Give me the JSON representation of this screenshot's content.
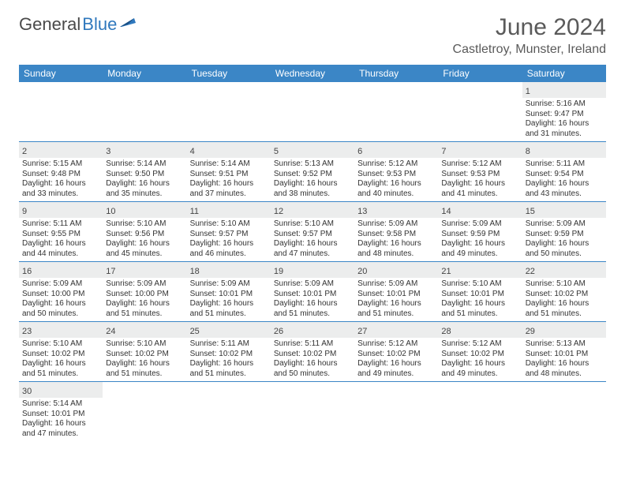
{
  "logo": {
    "text_dark": "General",
    "text_blue": "Blue"
  },
  "title": "June 2024",
  "location": "Castletroy, Munster, Ireland",
  "colors": {
    "header_bg": "#3b86c6",
    "header_text": "#ffffff",
    "daynum_bg": "#eceded",
    "rule": "#3b86c6",
    "logo_blue": "#2f78bd",
    "text": "#333333"
  },
  "weekdays": [
    "Sunday",
    "Monday",
    "Tuesday",
    "Wednesday",
    "Thursday",
    "Friday",
    "Saturday"
  ],
  "weeks": [
    {
      "days": [
        {
          "num": "",
          "sunrise": "",
          "sunset": "",
          "daylight": ""
        },
        {
          "num": "",
          "sunrise": "",
          "sunset": "",
          "daylight": ""
        },
        {
          "num": "",
          "sunrise": "",
          "sunset": "",
          "daylight": ""
        },
        {
          "num": "",
          "sunrise": "",
          "sunset": "",
          "daylight": ""
        },
        {
          "num": "",
          "sunrise": "",
          "sunset": "",
          "daylight": ""
        },
        {
          "num": "",
          "sunrise": "",
          "sunset": "",
          "daylight": ""
        },
        {
          "num": "1",
          "sunrise": "Sunrise: 5:16 AM",
          "sunset": "Sunset: 9:47 PM",
          "daylight": "Daylight: 16 hours and 31 minutes."
        }
      ]
    },
    {
      "days": [
        {
          "num": "2",
          "sunrise": "Sunrise: 5:15 AM",
          "sunset": "Sunset: 9:48 PM",
          "daylight": "Daylight: 16 hours and 33 minutes."
        },
        {
          "num": "3",
          "sunrise": "Sunrise: 5:14 AM",
          "sunset": "Sunset: 9:50 PM",
          "daylight": "Daylight: 16 hours and 35 minutes."
        },
        {
          "num": "4",
          "sunrise": "Sunrise: 5:14 AM",
          "sunset": "Sunset: 9:51 PM",
          "daylight": "Daylight: 16 hours and 37 minutes."
        },
        {
          "num": "5",
          "sunrise": "Sunrise: 5:13 AM",
          "sunset": "Sunset: 9:52 PM",
          "daylight": "Daylight: 16 hours and 38 minutes."
        },
        {
          "num": "6",
          "sunrise": "Sunrise: 5:12 AM",
          "sunset": "Sunset: 9:53 PM",
          "daylight": "Daylight: 16 hours and 40 minutes."
        },
        {
          "num": "7",
          "sunrise": "Sunrise: 5:12 AM",
          "sunset": "Sunset: 9:53 PM",
          "daylight": "Daylight: 16 hours and 41 minutes."
        },
        {
          "num": "8",
          "sunrise": "Sunrise: 5:11 AM",
          "sunset": "Sunset: 9:54 PM",
          "daylight": "Daylight: 16 hours and 43 minutes."
        }
      ]
    },
    {
      "days": [
        {
          "num": "9",
          "sunrise": "Sunrise: 5:11 AM",
          "sunset": "Sunset: 9:55 PM",
          "daylight": "Daylight: 16 hours and 44 minutes."
        },
        {
          "num": "10",
          "sunrise": "Sunrise: 5:10 AM",
          "sunset": "Sunset: 9:56 PM",
          "daylight": "Daylight: 16 hours and 45 minutes."
        },
        {
          "num": "11",
          "sunrise": "Sunrise: 5:10 AM",
          "sunset": "Sunset: 9:57 PM",
          "daylight": "Daylight: 16 hours and 46 minutes."
        },
        {
          "num": "12",
          "sunrise": "Sunrise: 5:10 AM",
          "sunset": "Sunset: 9:57 PM",
          "daylight": "Daylight: 16 hours and 47 minutes."
        },
        {
          "num": "13",
          "sunrise": "Sunrise: 5:09 AM",
          "sunset": "Sunset: 9:58 PM",
          "daylight": "Daylight: 16 hours and 48 minutes."
        },
        {
          "num": "14",
          "sunrise": "Sunrise: 5:09 AM",
          "sunset": "Sunset: 9:59 PM",
          "daylight": "Daylight: 16 hours and 49 minutes."
        },
        {
          "num": "15",
          "sunrise": "Sunrise: 5:09 AM",
          "sunset": "Sunset: 9:59 PM",
          "daylight": "Daylight: 16 hours and 50 minutes."
        }
      ]
    },
    {
      "days": [
        {
          "num": "16",
          "sunrise": "Sunrise: 5:09 AM",
          "sunset": "Sunset: 10:00 PM",
          "daylight": "Daylight: 16 hours and 50 minutes."
        },
        {
          "num": "17",
          "sunrise": "Sunrise: 5:09 AM",
          "sunset": "Sunset: 10:00 PM",
          "daylight": "Daylight: 16 hours and 51 minutes."
        },
        {
          "num": "18",
          "sunrise": "Sunrise: 5:09 AM",
          "sunset": "Sunset: 10:01 PM",
          "daylight": "Daylight: 16 hours and 51 minutes."
        },
        {
          "num": "19",
          "sunrise": "Sunrise: 5:09 AM",
          "sunset": "Sunset: 10:01 PM",
          "daylight": "Daylight: 16 hours and 51 minutes."
        },
        {
          "num": "20",
          "sunrise": "Sunrise: 5:09 AM",
          "sunset": "Sunset: 10:01 PM",
          "daylight": "Daylight: 16 hours and 51 minutes."
        },
        {
          "num": "21",
          "sunrise": "Sunrise: 5:10 AM",
          "sunset": "Sunset: 10:01 PM",
          "daylight": "Daylight: 16 hours and 51 minutes."
        },
        {
          "num": "22",
          "sunrise": "Sunrise: 5:10 AM",
          "sunset": "Sunset: 10:02 PM",
          "daylight": "Daylight: 16 hours and 51 minutes."
        }
      ]
    },
    {
      "days": [
        {
          "num": "23",
          "sunrise": "Sunrise: 5:10 AM",
          "sunset": "Sunset: 10:02 PM",
          "daylight": "Daylight: 16 hours and 51 minutes."
        },
        {
          "num": "24",
          "sunrise": "Sunrise: 5:10 AM",
          "sunset": "Sunset: 10:02 PM",
          "daylight": "Daylight: 16 hours and 51 minutes."
        },
        {
          "num": "25",
          "sunrise": "Sunrise: 5:11 AM",
          "sunset": "Sunset: 10:02 PM",
          "daylight": "Daylight: 16 hours and 51 minutes."
        },
        {
          "num": "26",
          "sunrise": "Sunrise: 5:11 AM",
          "sunset": "Sunset: 10:02 PM",
          "daylight": "Daylight: 16 hours and 50 minutes."
        },
        {
          "num": "27",
          "sunrise": "Sunrise: 5:12 AM",
          "sunset": "Sunset: 10:02 PM",
          "daylight": "Daylight: 16 hours and 49 minutes."
        },
        {
          "num": "28",
          "sunrise": "Sunrise: 5:12 AM",
          "sunset": "Sunset: 10:02 PM",
          "daylight": "Daylight: 16 hours and 49 minutes."
        },
        {
          "num": "29",
          "sunrise": "Sunrise: 5:13 AM",
          "sunset": "Sunset: 10:01 PM",
          "daylight": "Daylight: 16 hours and 48 minutes."
        }
      ]
    },
    {
      "days": [
        {
          "num": "30",
          "sunrise": "Sunrise: 5:14 AM",
          "sunset": "Sunset: 10:01 PM",
          "daylight": "Daylight: 16 hours and 47 minutes."
        },
        {
          "num": "",
          "sunrise": "",
          "sunset": "",
          "daylight": ""
        },
        {
          "num": "",
          "sunrise": "",
          "sunset": "",
          "daylight": ""
        },
        {
          "num": "",
          "sunrise": "",
          "sunset": "",
          "daylight": ""
        },
        {
          "num": "",
          "sunrise": "",
          "sunset": "",
          "daylight": ""
        },
        {
          "num": "",
          "sunrise": "",
          "sunset": "",
          "daylight": ""
        },
        {
          "num": "",
          "sunrise": "",
          "sunset": "",
          "daylight": ""
        }
      ]
    }
  ]
}
